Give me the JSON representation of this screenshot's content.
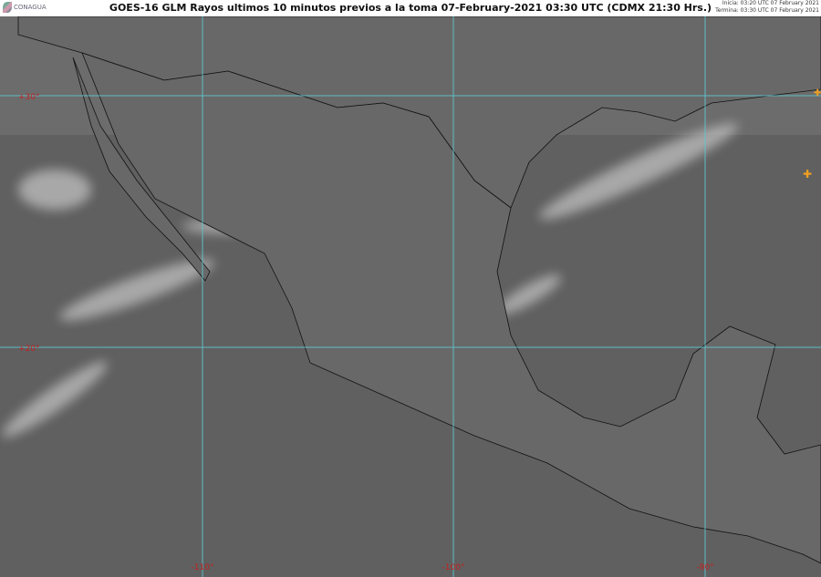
{
  "header": {
    "logo": "CONAGUA",
    "title": "GOES-16 GLM Rayos ultimos 10 minutos previos a la toma 07-February-2021 03:30 UTC  (CDMX  21:30 Hrs.)",
    "start": "Inicia: 03:20 UTC 07 February 2021",
    "end": "Termina: 03:30 UTC 07 February 2021"
  },
  "map": {
    "lat_labels": [
      "+30°",
      "+20°"
    ],
    "lon_labels": [
      "-110°",
      "-100°",
      "-90°"
    ],
    "gridline_color": "#5fc6d0",
    "label_color": "#c42020",
    "lightning_color": "#f0a020"
  }
}
